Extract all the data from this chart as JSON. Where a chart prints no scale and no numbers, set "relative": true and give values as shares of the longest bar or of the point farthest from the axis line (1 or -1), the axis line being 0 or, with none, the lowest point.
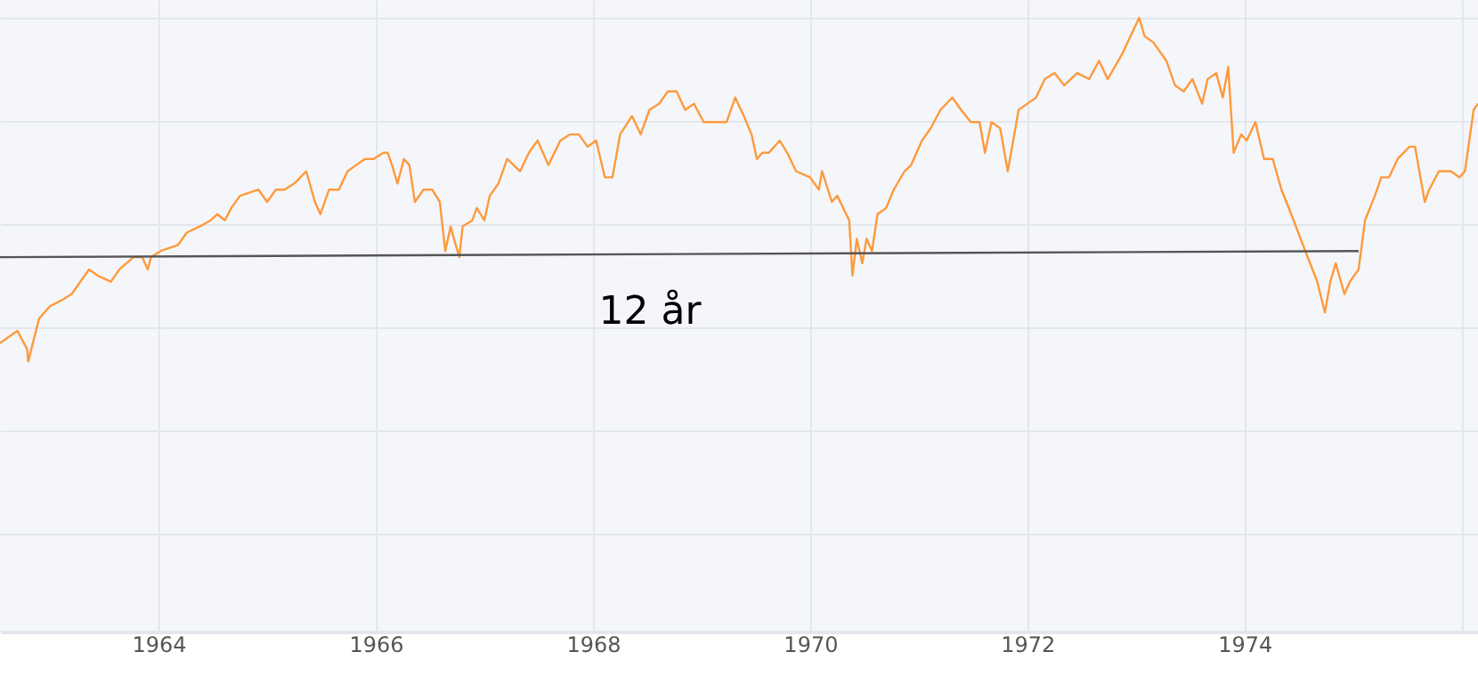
{
  "chart_data": {
    "type": "line",
    "relative": true,
    "grid": true,
    "xlim": [
      1962.54,
      1976.15
    ],
    "xticks": [
      1964,
      1966,
      1968,
      1970,
      1972,
      1974,
      {
        "value": 1976,
        "label": null
      }
    ],
    "annotations": [
      "12 år"
    ],
    "series": [
      {
        "color": "#fd9a3c",
        "x": [
          1962.54,
          1962.7,
          1962.79,
          1962.8,
          1962.9,
          1963.0,
          1963.11,
          1963.2,
          1963.28,
          1963.36,
          1963.44,
          1963.56,
          1963.64,
          1963.77,
          1963.85,
          1963.9,
          1963.93,
          1964.02,
          1964.18,
          1964.26,
          1964.38,
          1964.48,
          1964.54,
          1964.61,
          1964.67,
          1964.75,
          1964.92,
          1965.0,
          1965.08,
          1965.16,
          1965.25,
          1965.36,
          1965.44,
          1965.49,
          1965.57,
          1965.66,
          1965.74,
          1965.82,
          1965.9,
          1965.98,
          1966.07,
          1966.11,
          1966.15,
          1966.2,
          1966.26,
          1966.31,
          1966.36,
          1966.44,
          1966.52,
          1966.59,
          1966.64,
          1966.69,
          1966.72,
          1966.77,
          1966.8,
          1966.89,
          1966.93,
          1967.0,
          1967.05,
          1967.13,
          1967.21,
          1967.33,
          1967.41,
          1967.49,
          1967.59,
          1967.7,
          1967.79,
          1967.87,
          1967.95,
          1968.03,
          1968.11,
          1968.18,
          1968.25,
          1968.36,
          1968.44,
          1968.52,
          1968.61,
          1968.69,
          1968.77,
          1968.85,
          1968.93,
          1969.02,
          1969.1,
          1969.23,
          1969.31,
          1969.39,
          1969.46,
          1969.51,
          1969.56,
          1969.62,
          1969.72,
          1969.79,
          1969.87,
          1970.0,
          1970.08,
          1970.11,
          1970.2,
          1970.25,
          1970.36,
          1970.39,
          1970.43,
          1970.48,
          1970.52,
          1970.57,
          1970.62,
          1970.7,
          1970.77,
          1970.87,
          1970.93,
          1971.03,
          1971.11,
          1971.2,
          1971.31,
          1971.39,
          1971.48,
          1971.56,
          1971.61,
          1971.67,
          1971.75,
          1971.82,
          1971.92,
          1972.0,
          1972.08,
          1972.16,
          1972.25,
          1972.34,
          1972.46,
          1972.57,
          1972.66,
          1972.74,
          1972.87,
          1972.95,
          1973.03,
          1973.08,
          1973.16,
          1973.28,
          1973.36,
          1973.44,
          1973.52,
          1973.61,
          1973.66,
          1973.74,
          1973.8,
          1973.85,
          1973.9,
          1973.97,
          1974.02,
          1974.1,
          1974.18,
          1974.26,
          1974.34,
          1974.43,
          1974.56,
          1974.67,
          1974.74,
          1974.79,
          1974.84,
          1974.92,
          1974.97,
          1975.05,
          1975.11,
          1975.2,
          1975.26,
          1975.33,
          1975.41,
          1975.52,
          1975.57,
          1975.66,
          1975.7,
          1975.79,
          1975.9,
          1975.98,
          1976.03,
          1976.11,
          1976.15
        ],
        "values": [
          0.47,
          0.49,
          0.46,
          0.44,
          0.51,
          0.53,
          0.54,
          0.55,
          0.57,
          0.59,
          0.58,
          0.57,
          0.59,
          0.61,
          0.61,
          0.59,
          0.61,
          0.62,
          0.63,
          0.65,
          0.66,
          0.67,
          0.68,
          0.67,
          0.69,
          0.71,
          0.72,
          0.7,
          0.72,
          0.72,
          0.73,
          0.75,
          0.7,
          0.68,
          0.72,
          0.72,
          0.75,
          0.76,
          0.77,
          0.77,
          0.78,
          0.78,
          0.76,
          0.73,
          0.77,
          0.76,
          0.7,
          0.72,
          0.72,
          0.7,
          0.62,
          0.66,
          0.64,
          0.61,
          0.66,
          0.67,
          0.69,
          0.67,
          0.71,
          0.73,
          0.77,
          0.75,
          0.78,
          0.8,
          0.76,
          0.8,
          0.81,
          0.81,
          0.79,
          0.8,
          0.74,
          0.74,
          0.81,
          0.84,
          0.81,
          0.85,
          0.86,
          0.88,
          0.88,
          0.85,
          0.86,
          0.83,
          0.83,
          0.83,
          0.87,
          0.84,
          0.81,
          0.77,
          0.78,
          0.78,
          0.8,
          0.78,
          0.75,
          0.74,
          0.72,
          0.75,
          0.7,
          0.71,
          0.67,
          0.58,
          0.64,
          0.6,
          0.64,
          0.62,
          0.68,
          0.69,
          0.72,
          0.75,
          0.76,
          0.8,
          0.82,
          0.85,
          0.87,
          0.85,
          0.83,
          0.83,
          0.78,
          0.83,
          0.82,
          0.75,
          0.85,
          0.86,
          0.87,
          0.9,
          0.91,
          0.89,
          0.91,
          0.9,
          0.93,
          0.9,
          0.94,
          0.97,
          1,
          0.97,
          0.96,
          0.93,
          0.89,
          0.88,
          0.9,
          0.86,
          0.9,
          0.91,
          0.87,
          0.92,
          0.78,
          0.81,
          0.8,
          0.83,
          0.77,
          0.77,
          0.72,
          0.68,
          0.62,
          0.57,
          0.52,
          0.57,
          0.6,
          0.55,
          0.57,
          0.59,
          0.67,
          0.71,
          0.74,
          0.74,
          0.77,
          0.79,
          0.79,
          0.7,
          0.72,
          0.75,
          0.75,
          0.74,
          0.75,
          0.85,
          0.86
        ]
      },
      {
        "type": "line",
        "color": "#555555",
        "x": [
          1962.54,
          1975.05
        ],
        "values": [
          0.61,
          0.62
        ]
      }
    ]
  }
}
